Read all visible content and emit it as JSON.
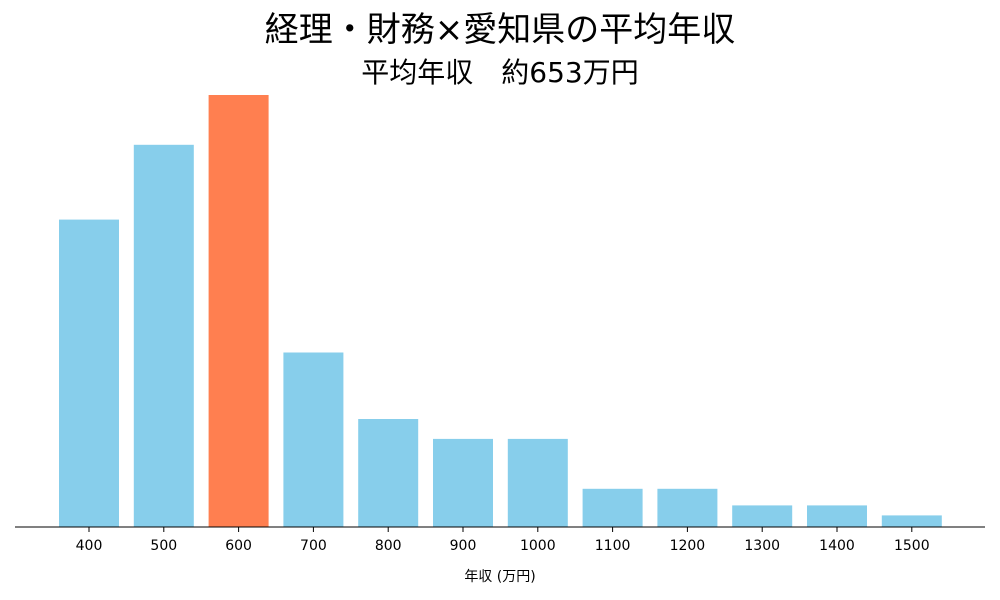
{
  "chart_data": {
    "type": "bar",
    "title": "経理・財務×愛知県の平均年収",
    "subtitle": "平均年収　約653万円",
    "xlabel": "年収 (万円)",
    "ylabel": "",
    "categories": [
      "400",
      "500",
      "600",
      "700",
      "800",
      "900",
      "1000",
      "1100",
      "1200",
      "1300",
      "1400",
      "1500"
    ],
    "values": [
      18.5,
      23,
      26,
      10.5,
      6.5,
      5.3,
      5.3,
      2.3,
      2.3,
      1.3,
      1.3,
      0.7
    ],
    "ylim": [
      0,
      26
    ],
    "highlight_category": "600",
    "colors": {
      "bar": "#87CEEB",
      "highlight": "#FF7F50",
      "axis": "#000000"
    },
    "grid": false,
    "y_axis_visible": false
  }
}
